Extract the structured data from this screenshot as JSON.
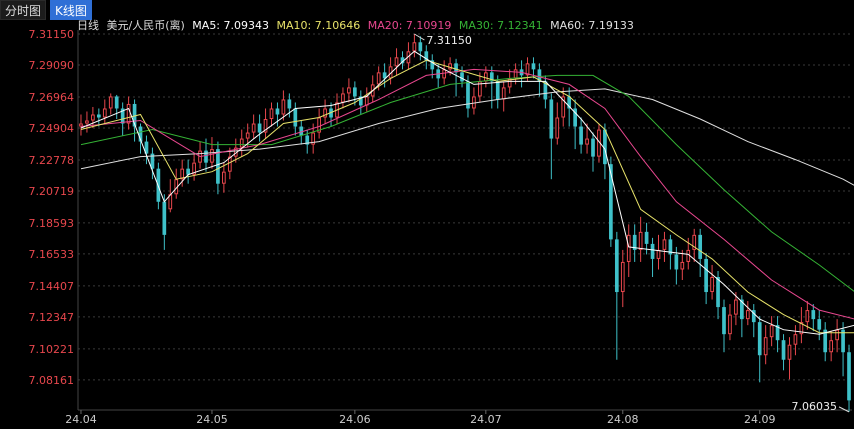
{
  "tabs": [
    {
      "label": "分时图",
      "active": false
    },
    {
      "label": "K线图",
      "active": true
    }
  ],
  "legend": {
    "period": "日线",
    "symbol": "美元/人民币(离)",
    "ma5": "MA5: 7.09343",
    "ma10": "MA10: 7.10646",
    "ma20": "MA20: 7.10919",
    "ma30": "MA30: 7.12341",
    "ma60": "MA60: 7.19133"
  },
  "colors": {
    "background": "#000000",
    "up": "#e8474d",
    "down": "#3fc1c9",
    "grid": "#3a3a3a",
    "ma5": "#ffffff",
    "ma10": "#e8e36a",
    "ma20": "#e8478f",
    "ma30": "#35b335",
    "ma60": "#e0e0e0",
    "axis_text": "#e8474d",
    "date_text": "#cccccc"
  },
  "chart_data": {
    "type": "candlestick",
    "yticks": [
      "7.31150",
      "7.29090",
      "7.26964",
      "7.24904",
      "7.22778",
      "7.20719",
      "7.18593",
      "7.16533",
      "7.14407",
      "7.12347",
      "7.10221",
      "7.08161"
    ],
    "ylim": [
      7.0616,
      7.3115
    ],
    "xticks": [
      "24.04",
      "24.05",
      "24.06",
      "24.07",
      "24.08",
      "24.09"
    ],
    "max_label": "7.31150",
    "min_label": "7.06035",
    "candles": [
      [
        7.25,
        7.252,
        7.258,
        7.244
      ],
      [
        7.252,
        7.254,
        7.26,
        7.246
      ],
      [
        7.254,
        7.258,
        7.263,
        7.249
      ],
      [
        7.258,
        7.256,
        7.262,
        7.25
      ],
      [
        7.256,
        7.262,
        7.268,
        7.252
      ],
      [
        7.262,
        7.27,
        7.272,
        7.258
      ],
      [
        7.27,
        7.262,
        7.271,
        7.255
      ],
      [
        7.262,
        7.252,
        7.266,
        7.244
      ],
      [
        7.252,
        7.265,
        7.27,
        7.248
      ],
      [
        7.265,
        7.25,
        7.268,
        7.24
      ],
      [
        7.25,
        7.24,
        7.252,
        7.232
      ],
      [
        7.24,
        7.232,
        7.244,
        7.225
      ],
      [
        7.232,
        7.222,
        7.236,
        7.215
      ],
      [
        7.222,
        7.2,
        7.226,
        7.195
      ],
      [
        7.2,
        7.178,
        7.205,
        7.168
      ],
      [
        7.195,
        7.205,
        7.215,
        7.193
      ],
      [
        7.205,
        7.215,
        7.222,
        7.202
      ],
      [
        7.215,
        7.222,
        7.228,
        7.21
      ],
      [
        7.222,
        7.218,
        7.228,
        7.212
      ],
      [
        7.218,
        7.226,
        7.232,
        7.214
      ],
      [
        7.226,
        7.234,
        7.24,
        7.222
      ],
      [
        7.234,
        7.226,
        7.242,
        7.22
      ],
      [
        7.226,
        7.235,
        7.243,
        7.222
      ],
      [
        7.235,
        7.212,
        7.24,
        7.205
      ],
      [
        7.212,
        7.22,
        7.226,
        7.206
      ],
      [
        7.22,
        7.23,
        7.236,
        7.215
      ],
      [
        7.23,
        7.236,
        7.242,
        7.226
      ],
      [
        7.236,
        7.242,
        7.248,
        7.23
      ],
      [
        7.242,
        7.246,
        7.252,
        7.236
      ],
      [
        7.246,
        7.252,
        7.258,
        7.242
      ],
      [
        7.252,
        7.246,
        7.258,
        7.24
      ],
      [
        7.246,
        7.255,
        7.262,
        7.242
      ],
      [
        7.255,
        7.262,
        7.266,
        7.25
      ],
      [
        7.262,
        7.258,
        7.266,
        7.25
      ],
      [
        7.258,
        7.268,
        7.274,
        7.254
      ],
      [
        7.268,
        7.262,
        7.272,
        7.256
      ],
      [
        7.262,
        7.25,
        7.266,
        7.244
      ],
      [
        7.25,
        7.244,
        7.254,
        7.238
      ],
      [
        7.244,
        7.238,
        7.248,
        7.232
      ],
      [
        7.238,
        7.246,
        7.252,
        7.232
      ],
      [
        7.246,
        7.256,
        7.262,
        7.242
      ],
      [
        7.256,
        7.262,
        7.268,
        7.252
      ],
      [
        7.262,
        7.256,
        7.266,
        7.25
      ],
      [
        7.256,
        7.266,
        7.272,
        7.252
      ],
      [
        7.266,
        7.272,
        7.276,
        7.262
      ],
      [
        7.272,
        7.276,
        7.282,
        7.266
      ],
      [
        7.276,
        7.27,
        7.28,
        7.264
      ],
      [
        7.27,
        7.264,
        7.274,
        7.258
      ],
      [
        7.264,
        7.27,
        7.276,
        7.26
      ],
      [
        7.27,
        7.278,
        7.284,
        7.266
      ],
      [
        7.278,
        7.286,
        7.29,
        7.274
      ],
      [
        7.286,
        7.282,
        7.292,
        7.276
      ],
      [
        7.282,
        7.29,
        7.296,
        7.278
      ],
      [
        7.29,
        7.296,
        7.302,
        7.284
      ],
      [
        7.296,
        7.292,
        7.3,
        7.288
      ],
      [
        7.292,
        7.3,
        7.306,
        7.288
      ],
      [
        7.3,
        7.306,
        7.3115,
        7.296
      ],
      [
        7.306,
        7.3,
        7.31,
        7.294
      ],
      [
        7.3,
        7.294,
        7.304,
        7.288
      ],
      [
        7.294,
        7.288,
        7.298,
        7.282
      ],
      [
        7.288,
        7.282,
        7.292,
        7.276
      ],
      [
        7.282,
        7.288,
        7.294,
        7.278
      ],
      [
        7.288,
        7.292,
        7.296,
        7.284
      ],
      [
        7.292,
        7.286,
        7.295,
        7.27
      ],
      [
        7.286,
        7.28,
        7.29,
        7.276
      ],
      [
        7.28,
        7.262,
        7.284,
        7.256
      ],
      [
        7.262,
        7.27,
        7.276,
        7.258
      ],
      [
        7.27,
        7.28,
        7.286,
        7.266
      ],
      [
        7.28,
        7.286,
        7.29,
        7.276
      ],
      [
        7.286,
        7.28,
        7.29,
        7.262
      ],
      [
        7.28,
        7.268,
        7.284,
        7.262
      ],
      [
        7.268,
        7.276,
        7.28,
        7.26
      ],
      [
        7.276,
        7.282,
        7.288,
        7.272
      ],
      [
        7.282,
        7.288,
        7.292,
        7.278
      ],
      [
        7.288,
        7.284,
        7.294,
        7.276
      ],
      [
        7.284,
        7.292,
        7.296,
        7.28
      ],
      [
        7.292,
        7.288,
        7.296,
        7.282
      ],
      [
        7.288,
        7.28,
        7.292,
        7.27
      ],
      [
        7.28,
        7.268,
        7.284,
        7.262
      ],
      [
        7.268,
        7.242,
        7.272,
        7.215
      ],
      [
        7.242,
        7.256,
        7.266,
        7.238
      ],
      [
        7.256,
        7.27,
        7.276,
        7.25
      ],
      [
        7.27,
        7.262,
        7.276,
        7.25
      ],
      [
        7.262,
        7.25,
        7.268,
        7.235
      ],
      [
        7.25,
        7.238,
        7.256,
        7.232
      ],
      [
        7.238,
        7.242,
        7.252,
        7.232
      ],
      [
        7.242,
        7.23,
        7.246,
        7.22
      ],
      [
        7.23,
        7.248,
        7.252,
        7.226
      ],
      [
        7.248,
        7.225,
        7.252,
        7.215
      ],
      [
        7.225,
        7.175,
        7.23,
        7.17
      ],
      [
        7.175,
        7.14,
        7.18,
        7.095
      ],
      [
        7.14,
        7.16,
        7.168,
        7.13
      ],
      [
        7.16,
        7.178,
        7.185,
        7.15
      ],
      [
        7.178,
        7.168,
        7.185,
        7.16
      ],
      [
        7.168,
        7.18,
        7.19,
        7.16
      ],
      [
        7.18,
        7.172,
        7.186,
        7.165
      ],
      [
        7.172,
        7.162,
        7.176,
        7.15
      ],
      [
        7.162,
        7.168,
        7.178,
        7.155
      ],
      [
        7.168,
        7.175,
        7.18,
        7.16
      ],
      [
        7.175,
        7.165,
        7.178,
        7.155
      ],
      [
        7.165,
        7.155,
        7.17,
        7.145
      ],
      [
        7.155,
        7.16,
        7.168,
        7.148
      ],
      [
        7.16,
        7.168,
        7.176,
        7.155
      ],
      [
        7.168,
        7.178,
        7.182,
        7.16
      ],
      [
        7.178,
        7.162,
        7.182,
        7.15
      ],
      [
        7.162,
        7.14,
        7.166,
        7.132
      ],
      [
        7.14,
        7.15,
        7.158,
        7.135
      ],
      [
        7.15,
        7.13,
        7.154,
        7.122
      ],
      [
        7.13,
        7.112,
        7.135,
        7.1
      ],
      [
        7.112,
        7.125,
        7.132,
        7.108
      ],
      [
        7.125,
        7.135,
        7.14,
        7.118
      ],
      [
        7.135,
        7.122,
        7.138,
        7.11
      ],
      [
        7.122,
        7.128,
        7.134,
        7.118
      ],
      [
        7.128,
        7.12,
        7.132,
        7.11
      ],
      [
        7.12,
        7.098,
        7.124,
        7.08
      ],
      [
        7.098,
        7.11,
        7.118,
        7.092
      ],
      [
        7.11,
        7.118,
        7.124,
        7.104
      ],
      [
        7.118,
        7.108,
        7.124,
        7.1
      ],
      [
        7.108,
        7.095,
        7.112,
        7.088
      ],
      [
        7.095,
        7.105,
        7.11,
        7.082
      ],
      [
        7.105,
        7.112,
        7.118,
        7.098
      ],
      [
        7.112,
        7.12,
        7.13,
        7.106
      ],
      [
        7.12,
        7.128,
        7.134,
        7.115
      ],
      [
        7.128,
        7.122,
        7.132,
        7.114
      ],
      [
        7.122,
        7.115,
        7.128,
        7.108
      ],
      [
        7.115,
        7.1,
        7.12,
        7.094
      ],
      [
        7.1,
        7.108,
        7.114,
        7.094
      ],
      [
        7.108,
        7.115,
        7.122,
        7.1
      ],
      [
        7.115,
        7.1,
        7.12,
        7.084
      ],
      [
        7.1,
        7.068,
        7.105,
        7.06035
      ]
    ],
    "ma5": [
      [
        0,
        7.249
      ],
      [
        8,
        7.262
      ],
      [
        14,
        7.2
      ],
      [
        18,
        7.218
      ],
      [
        24,
        7.226
      ],
      [
        30,
        7.245
      ],
      [
        36,
        7.262
      ],
      [
        42,
        7.264
      ],
      [
        48,
        7.27
      ],
      [
        54,
        7.293
      ],
      [
        56,
        7.3
      ],
      [
        60,
        7.29
      ],
      [
        66,
        7.278
      ],
      [
        72,
        7.28
      ],
      [
        78,
        7.28
      ],
      [
        84,
        7.255
      ],
      [
        88,
        7.235
      ],
      [
        92,
        7.17
      ],
      [
        96,
        7.168
      ],
      [
        102,
        7.165
      ],
      [
        108,
        7.145
      ],
      [
        114,
        7.122
      ],
      [
        118,
        7.115
      ],
      [
        124,
        7.112
      ],
      [
        130,
        7.118
      ],
      [
        134,
        7.105
      ],
      [
        136,
        7.095
      ],
      [
        139,
        7.093
      ]
    ],
    "ma10": [
      [
        0,
        7.248
      ],
      [
        10,
        7.258
      ],
      [
        16,
        7.215
      ],
      [
        22,
        7.22
      ],
      [
        28,
        7.232
      ],
      [
        34,
        7.252
      ],
      [
        40,
        7.256
      ],
      [
        46,
        7.266
      ],
      [
        52,
        7.282
      ],
      [
        58,
        7.294
      ],
      [
        64,
        7.287
      ],
      [
        70,
        7.28
      ],
      [
        76,
        7.283
      ],
      [
        82,
        7.27
      ],
      [
        88,
        7.248
      ],
      [
        94,
        7.195
      ],
      [
        100,
        7.178
      ],
      [
        106,
        7.162
      ],
      [
        112,
        7.14
      ],
      [
        118,
        7.125
      ],
      [
        124,
        7.113
      ],
      [
        130,
        7.113
      ],
      [
        134,
        7.11
      ],
      [
        139,
        7.106
      ]
    ],
    "ma20": [
      [
        0,
        7.25
      ],
      [
        10,
        7.254
      ],
      [
        20,
        7.23
      ],
      [
        30,
        7.238
      ],
      [
        40,
        7.25
      ],
      [
        50,
        7.268
      ],
      [
        58,
        7.284
      ],
      [
        66,
        7.288
      ],
      [
        74,
        7.286
      ],
      [
        82,
        7.278
      ],
      [
        88,
        7.262
      ],
      [
        94,
        7.23
      ],
      [
        100,
        7.2
      ],
      [
        108,
        7.175
      ],
      [
        116,
        7.148
      ],
      [
        124,
        7.128
      ],
      [
        130,
        7.122
      ],
      [
        135,
        7.116
      ],
      [
        139,
        7.109
      ]
    ],
    "ma30": [
      [
        0,
        7.238
      ],
      [
        12,
        7.248
      ],
      [
        22,
        7.238
      ],
      [
        32,
        7.238
      ],
      [
        42,
        7.25
      ],
      [
        52,
        7.266
      ],
      [
        62,
        7.278
      ],
      [
        72,
        7.282
      ],
      [
        80,
        7.284
      ],
      [
        86,
        7.284
      ],
      [
        92,
        7.27
      ],
      [
        100,
        7.238
      ],
      [
        108,
        7.208
      ],
      [
        116,
        7.18
      ],
      [
        124,
        7.158
      ],
      [
        130,
        7.14
      ],
      [
        135,
        7.13
      ],
      [
        139,
        7.123
      ]
    ],
    "ma60": [
      [
        0,
        7.222
      ],
      [
        10,
        7.23
      ],
      [
        20,
        7.232
      ],
      [
        30,
        7.235
      ],
      [
        40,
        7.24
      ],
      [
        50,
        7.252
      ],
      [
        60,
        7.262
      ],
      [
        70,
        7.268
      ],
      [
        80,
        7.273
      ],
      [
        88,
        7.275
      ],
      [
        96,
        7.268
      ],
      [
        104,
        7.255
      ],
      [
        112,
        7.24
      ],
      [
        120,
        7.228
      ],
      [
        128,
        7.215
      ],
      [
        134,
        7.202
      ],
      [
        139,
        7.191
      ]
    ]
  }
}
